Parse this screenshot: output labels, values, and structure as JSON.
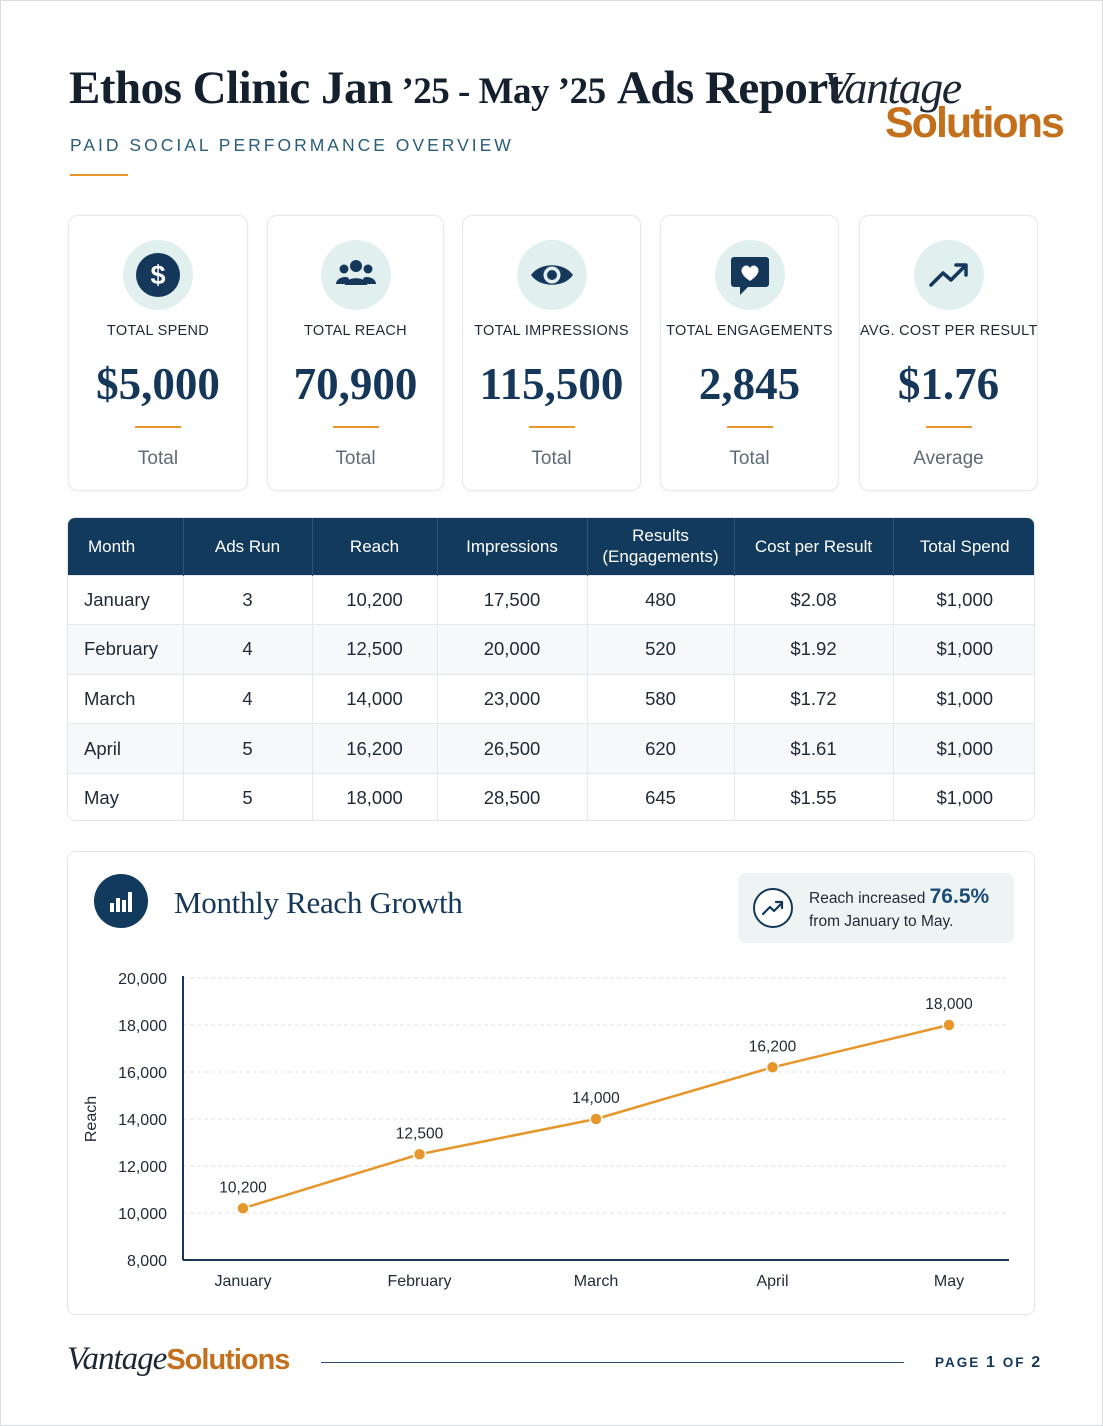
{
  "header": {
    "title_part1": "Ethos Clinic Jan",
    "title_part2": " ’25 - May ’25",
    "title_part3": "Ads Report",
    "subtitle": "PAID SOCIAL PERFORMANCE OVERVIEW",
    "brand_word1": "Vantage",
    "brand_word2": "Solutions"
  },
  "kpis": [
    {
      "label": "TOTAL SPEND",
      "value": "$5,000",
      "note": "Total",
      "icon": "dollar-icon"
    },
    {
      "label": "TOTAL REACH",
      "value": "70,900",
      "note": "Total",
      "icon": "people-icon"
    },
    {
      "label": "TOTAL IMPRESSIONS",
      "value": "115,500",
      "note": "Total",
      "icon": "eye-icon"
    },
    {
      "label": "TOTAL ENGAGEMENTS",
      "value": "2,845",
      "note": "Total",
      "icon": "heart-chat-icon"
    },
    {
      "label": "AVG. COST PER RESULT",
      "value": "$1.76",
      "note": "Average",
      "icon": "trend-up-icon"
    }
  ],
  "table": {
    "headers": [
      "Month",
      "Ads Run",
      "Reach",
      "Impressions",
      "Results",
      "(Engagements)",
      "Cost per Result",
      "Total Spend"
    ],
    "rows": [
      [
        "January",
        "3",
        "10,200",
        "17,500",
        "480",
        "$2.08",
        "$1,000"
      ],
      [
        "February",
        "4",
        "12,500",
        "20,000",
        "520",
        "$1.92",
        "$1,000"
      ],
      [
        "March",
        "4",
        "14,000",
        "23,000",
        "580",
        "$1.72",
        "$1,000"
      ],
      [
        "April",
        "5",
        "16,200",
        "26,500",
        "620",
        "$1.61",
        "$1,000"
      ],
      [
        "May",
        "5",
        "18,000",
        "28,500",
        "645",
        "$1.55",
        "$1,000"
      ]
    ]
  },
  "chart_section": {
    "title": "Monthly Reach Growth",
    "callout_text1": "Reach increased ",
    "callout_pct": "76.5%",
    "callout_text2": "from January to May."
  },
  "chart_data": {
    "type": "line",
    "title": "Monthly Reach Growth",
    "xlabel": "",
    "ylabel": "Reach",
    "categories": [
      "January",
      "February",
      "March",
      "April",
      "May"
    ],
    "values": [
      10200,
      12500,
      14000,
      16200,
      18000
    ],
    "data_labels": [
      "10,200",
      "12,500",
      "14,000",
      "16,200",
      "18,000"
    ],
    "ylim": [
      8000,
      20000
    ],
    "yticks": [
      8000,
      10000,
      12000,
      14000,
      16000,
      18000,
      20000
    ],
    "ytick_labels": [
      "8,000",
      "10,000",
      "12,000",
      "14,000",
      "16,000",
      "18,000",
      "20,000"
    ],
    "grid": true,
    "line_color": "#e6962a"
  },
  "footer": {
    "brand_word1": "Vantage",
    "brand_word2": "Solutions",
    "page_label": "PAGE",
    "page_current": "1",
    "page_of": "OF",
    "page_total": "2"
  },
  "colors": {
    "navy": "#14375a",
    "accent": "#e6962a",
    "brand_orange": "#c46f1c"
  }
}
